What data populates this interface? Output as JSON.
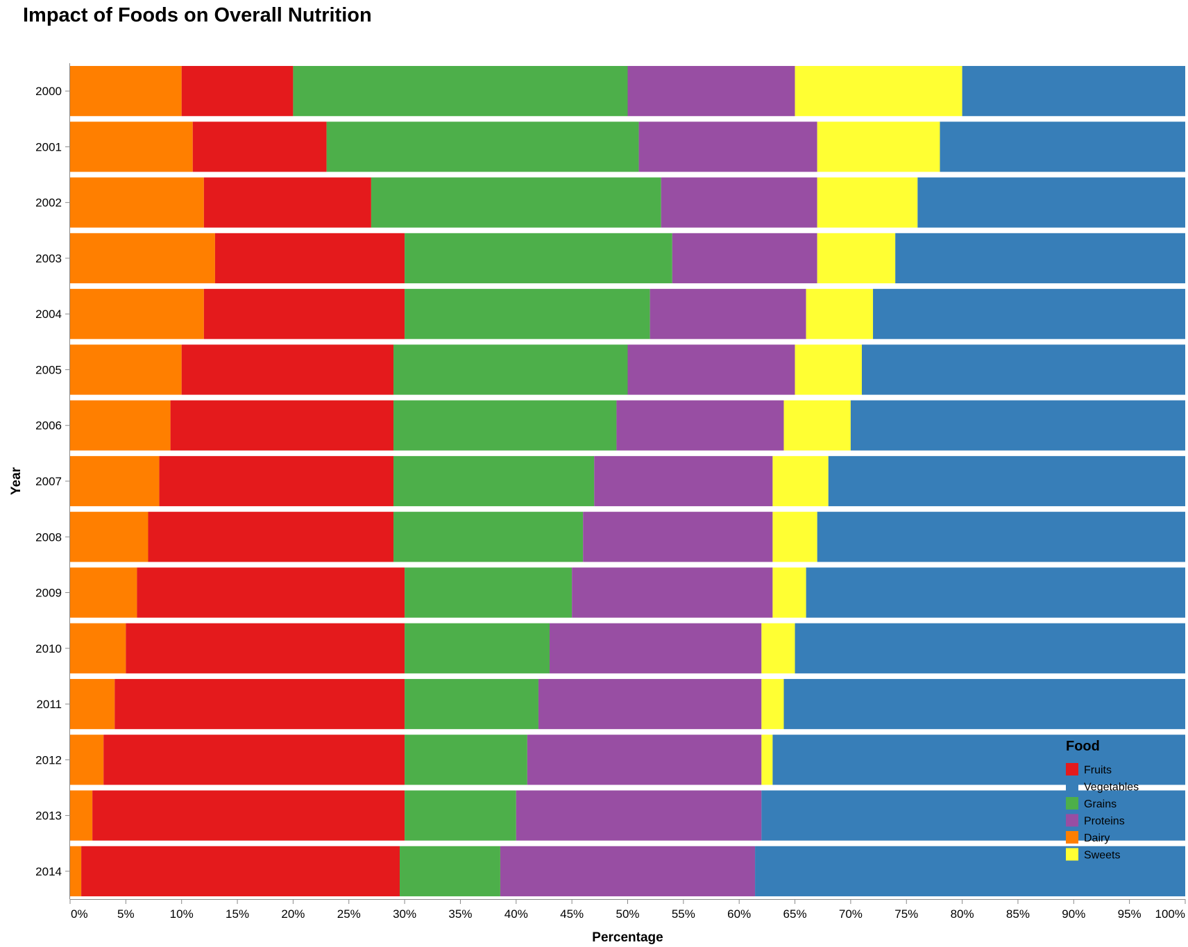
{
  "chart_data": {
    "type": "bar",
    "orientation": "horizontal",
    "stacked": "normalized",
    "title": "Impact of Foods on Overall Nutrition",
    "xlabel": "Percentage",
    "ylabel": "Year",
    "xlim": [
      0,
      100
    ],
    "x_ticks": [
      "0%",
      "5%",
      "10%",
      "15%",
      "20%",
      "25%",
      "30%",
      "35%",
      "40%",
      "45%",
      "50%",
      "55%",
      "60%",
      "65%",
      "70%",
      "75%",
      "80%",
      "85%",
      "90%",
      "95%",
      "100%"
    ],
    "grid": false,
    "legend_position": "bottom-right",
    "legend_title": "Food",
    "categories": [
      "2000",
      "2001",
      "2002",
      "2003",
      "2004",
      "2005",
      "2006",
      "2007",
      "2008",
      "2009",
      "2010",
      "2011",
      "2012",
      "2013",
      "2014"
    ],
    "stack_order": [
      "Dairy",
      "Fruits",
      "Grains",
      "Proteins",
      "Sweets",
      "Vegetables"
    ],
    "legend_order": [
      "Fruits",
      "Vegetables",
      "Grains",
      "Proteins",
      "Dairy",
      "Sweets"
    ],
    "series": [
      {
        "name": "Fruits",
        "color": "#e41a1c",
        "values": [
          10,
          12,
          15,
          17,
          18,
          19,
          20,
          21,
          22,
          24,
          25,
          26,
          27,
          28,
          28.5
        ]
      },
      {
        "name": "Vegetables",
        "color": "#377eb8",
        "values": [
          20,
          22,
          24,
          26,
          28,
          29,
          30,
          32,
          33,
          34,
          35,
          36,
          37,
          38,
          38.5
        ]
      },
      {
        "name": "Grains",
        "color": "#4daf4a",
        "values": [
          30,
          28,
          26,
          24,
          22,
          21,
          20,
          18,
          17,
          15,
          13,
          12,
          11,
          10,
          9
        ]
      },
      {
        "name": "Proteins",
        "color": "#984ea3",
        "values": [
          15,
          16,
          14,
          13,
          14,
          15,
          15,
          16,
          17,
          18,
          19,
          20,
          21,
          22,
          22.8
        ]
      },
      {
        "name": "Dairy",
        "color": "#ff7f00",
        "values": [
          10,
          11,
          12,
          13,
          12,
          10,
          9,
          8,
          7,
          6,
          5,
          4,
          3,
          2,
          1
        ]
      },
      {
        "name": "Sweets",
        "color": "#ffff33",
        "values": [
          15,
          11,
          9,
          7,
          6,
          6,
          6,
          5,
          4,
          3,
          3,
          2,
          1,
          0,
          0
        ]
      }
    ]
  }
}
